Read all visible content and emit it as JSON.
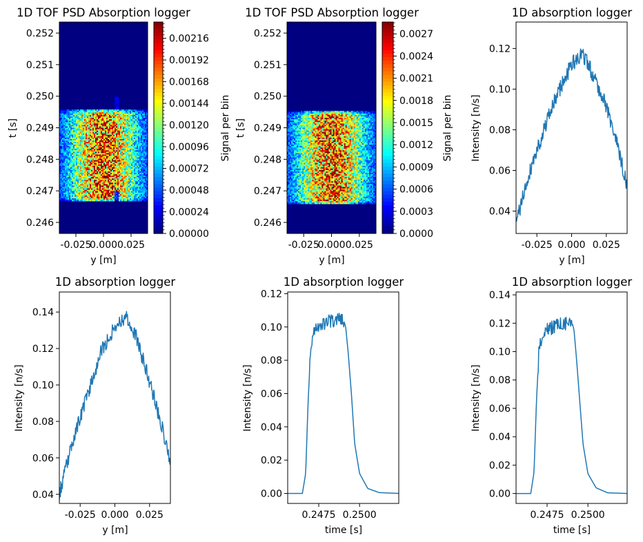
{
  "chart_data": [
    {
      "type": "heatmap",
      "title": "1D TOF PSD Absorption logger",
      "xlabel": "y [m]",
      "ylabel": "t [s]",
      "xlim": [
        -0.04,
        0.04
      ],
      "ylim": [
        0.24565,
        0.25235
      ],
      "xticks": [
        "-0.025",
        "0.000",
        "0.025"
      ],
      "yticks": [
        "0.246",
        "0.247",
        "0.248",
        "0.249",
        "0.250",
        "0.251",
        "0.252"
      ],
      "colorbar": {
        "label": "Signal per bin",
        "range": [
          0,
          0.00234
        ],
        "ticks": [
          "0.00000",
          "0.00024",
          "0.00048",
          "0.00072",
          "0.00096",
          "0.00120",
          "0.00144",
          "0.00168",
          "0.00192",
          "0.00216"
        ],
        "colormap": "jet"
      },
      "region": {
        "t_start": 0.24669,
        "t_end": 0.2496,
        "peak_y": 0.0,
        "notch_y": 0.012
      },
      "seed": 11
    },
    {
      "type": "heatmap",
      "title": "1D TOF PSD Absorption logger",
      "xlabel": "y [m]",
      "ylabel": "t [s]",
      "xlim": [
        -0.04,
        0.04
      ],
      "ylim": [
        0.24565,
        0.25235
      ],
      "xticks": [
        "-0.025",
        "0.000",
        "0.025"
      ],
      "yticks": [
        "0.246",
        "0.247",
        "0.248",
        "0.249",
        "0.250",
        "0.251",
        "0.252"
      ],
      "colorbar": {
        "label": "Signal per bin",
        "range": [
          0,
          0.00286
        ],
        "ticks": [
          "0.0000",
          "0.0003",
          "0.0006",
          "0.0009",
          "0.0012",
          "0.0015",
          "0.0018",
          "0.0021",
          "0.0024",
          "0.0027"
        ],
        "colormap": "jet"
      },
      "region": {
        "t_start": 0.2466,
        "t_end": 0.24955,
        "peak_y": 0.0,
        "notch_y": null
      },
      "seed": 29
    },
    {
      "type": "line",
      "title": "1D absorption logger",
      "xlabel": "y [m]",
      "ylabel": "Intensity [n/s]",
      "xlim": [
        -0.04,
        0.04
      ],
      "ylim": [
        0.029,
        0.133
      ],
      "xticks": [
        "-0.025",
        "0.000",
        "0.025"
      ],
      "yticks": [
        "0.04",
        "0.06",
        "0.08",
        "0.10",
        "0.12"
      ],
      "series": [
        {
          "color": "#1f77b4",
          "keypoints": [
            [
              -0.04,
              0.034
            ],
            [
              -0.03,
              0.06
            ],
            [
              -0.02,
              0.08
            ],
            [
              -0.01,
              0.098
            ],
            [
              0.0,
              0.112
            ],
            [
              0.008,
              0.117
            ],
            [
              0.015,
              0.108
            ],
            [
              0.025,
              0.092
            ],
            [
              0.033,
              0.072
            ],
            [
              0.04,
              0.052
            ]
          ],
          "noise": 0.004,
          "seed": 41
        }
      ]
    },
    {
      "type": "line",
      "title": "1D absorption logger",
      "xlabel": "y [m]",
      "ylabel": "Intensity [n/s]",
      "xlim": [
        -0.04,
        0.04
      ],
      "ylim": [
        0.035,
        0.151
      ],
      "xticks": [
        "-0.025",
        "0.000",
        "0.025"
      ],
      "yticks": [
        "0.04",
        "0.06",
        "0.08",
        "0.10",
        "0.12",
        "0.14"
      ],
      "series": [
        {
          "color": "#1f77b4",
          "keypoints": [
            [
              -0.04,
              0.04
            ],
            [
              -0.03,
              0.07
            ],
            [
              -0.02,
              0.094
            ],
            [
              -0.01,
              0.118
            ],
            [
              0.0,
              0.132
            ],
            [
              0.008,
              0.138
            ],
            [
              0.015,
              0.127
            ],
            [
              0.025,
              0.102
            ],
            [
              0.033,
              0.08
            ],
            [
              0.04,
              0.058
            ]
          ],
          "noise": 0.004,
          "seed": 53
        }
      ]
    },
    {
      "type": "line",
      "title": "1D absorption logger",
      "xlabel": "time [s]",
      "ylabel": "Intensity [n/s]",
      "xlim": [
        0.2456,
        0.2524
      ],
      "ylim": [
        -0.006,
        0.121
      ],
      "xticks": [
        "0.2475",
        "0.2500"
      ],
      "xtick_values": [
        0.2475,
        0.25
      ],
      "yticks": [
        "0.00",
        "0.02",
        "0.04",
        "0.06",
        "0.08",
        "0.10",
        "0.12"
      ],
      "series": [
        {
          "color": "#1f77b4",
          "keypoints": [
            [
              0.2456,
              0.0
            ],
            [
              0.2465,
              0.0
            ],
            [
              0.2467,
              0.012
            ],
            [
              0.24685,
              0.055
            ],
            [
              0.247,
              0.085
            ],
            [
              0.2472,
              0.098
            ],
            [
              0.2475,
              0.101
            ],
            [
              0.248,
              0.103
            ],
            [
              0.2486,
              0.104
            ],
            [
              0.249,
              0.105
            ],
            [
              0.24915,
              0.1
            ],
            [
              0.2493,
              0.085
            ],
            [
              0.2495,
              0.06
            ],
            [
              0.2497,
              0.03
            ],
            [
              0.25,
              0.012
            ],
            [
              0.2505,
              0.003
            ],
            [
              0.2512,
              0.0005
            ],
            [
              0.2524,
              0.0
            ]
          ],
          "noise": 0.004,
          "noise_range": [
            0.24695,
            0.24905
          ],
          "seed": 67
        }
      ]
    },
    {
      "type": "line",
      "title": "1D absorption logger",
      "xlabel": "time [s]",
      "ylabel": "Intensity [n/s]",
      "xlim": [
        0.2456,
        0.2524
      ],
      "ylim": [
        -0.007,
        0.142
      ],
      "xticks": [
        "0.2475",
        "0.2500"
      ],
      "xtick_values": [
        0.2475,
        0.25
      ],
      "yticks": [
        "0.00",
        "0.02",
        "0.04",
        "0.06",
        "0.08",
        "0.10",
        "0.12",
        "0.14"
      ],
      "series": [
        {
          "color": "#1f77b4",
          "keypoints": [
            [
              0.2456,
              0.0
            ],
            [
              0.2465,
              0.0
            ],
            [
              0.2467,
              0.015
            ],
            [
              0.24685,
              0.065
            ],
            [
              0.247,
              0.1
            ],
            [
              0.2472,
              0.112
            ],
            [
              0.2475,
              0.115
            ],
            [
              0.248,
              0.118
            ],
            [
              0.2486,
              0.12
            ],
            [
              0.249,
              0.122
            ],
            [
              0.24915,
              0.115
            ],
            [
              0.2493,
              0.095
            ],
            [
              0.2495,
              0.065
            ],
            [
              0.2497,
              0.035
            ],
            [
              0.25,
              0.014
            ],
            [
              0.2505,
              0.004
            ],
            [
              0.2512,
              0.0005
            ],
            [
              0.2524,
              0.0
            ]
          ],
          "noise": 0.005,
          "noise_range": [
            0.24695,
            0.24905
          ],
          "seed": 79
        }
      ]
    }
  ]
}
